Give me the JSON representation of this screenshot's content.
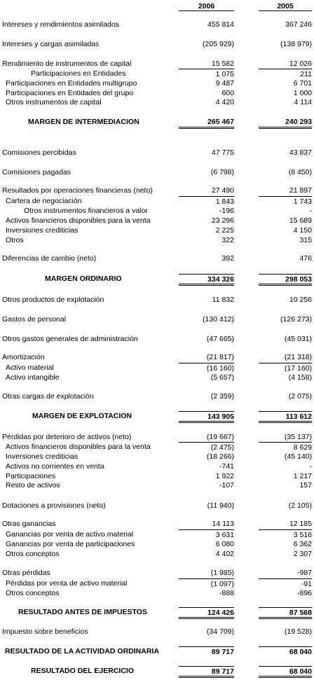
{
  "header": {
    "year_current": "2006",
    "year_previous": "2005"
  },
  "rows": [
    {
      "label": "Intereses y rendimientos asimilados",
      "v1": "455 814",
      "v2": "367 246"
    },
    {
      "label": "Intereses y cargas asimiladas",
      "v1": "(205 929)",
      "v2": "(138 979)"
    },
    {
      "label": "Rendimiento de instrumentos de capital",
      "v1": "15 582",
      "v2": "12 026"
    },
    {
      "label": "Participaciones en Entidades",
      "v1": "1 075",
      "v2": "211"
    },
    {
      "label": "Participaciones en Entidades multigrupo",
      "v1": "9 487",
      "v2": "6 701"
    },
    {
      "label": "Participaciones en Entidades del grupo",
      "v1": "600",
      "v2": "1 000"
    },
    {
      "label": "Otros instrumentos de capital",
      "v1": "4 420",
      "v2": "4 114"
    },
    {
      "label": "MARGEN DE INTERMEDIACION",
      "v1": "265 467",
      "v2": "240 293"
    },
    {
      "label": "Comisiones percibidas",
      "v1": "47 775",
      "v2": "43 837"
    },
    {
      "label": "Comisiones pagadas",
      "v1": "(6 798)",
      "v2": "(8 450)"
    },
    {
      "label": "Resultados por operaciones financieras (neto)",
      "v1": "27 490",
      "v2": "21 897"
    },
    {
      "label": "Cartera de negociación",
      "v1": "1 843",
      "v2": "1 743"
    },
    {
      "label": "Otros instrumentos financieros a valor",
      "v1": "-196",
      "v2": "-"
    },
    {
      "label": "Activos financieros disponibles para la venta",
      "v1": "23 296",
      "v2": "15 689"
    },
    {
      "label": "Inversiones crediticias",
      "v1": "2 225",
      "v2": "4 150"
    },
    {
      "label": "Otros",
      "v1": "322",
      "v2": "315"
    },
    {
      "label": "Diferencias de cambio (neto)",
      "v1": "392",
      "v2": "476"
    },
    {
      "label": "MARGEN ORDINARIO",
      "v1": "334 326",
      "v2": "298 053"
    },
    {
      "label": "Otros productos de explotación",
      "v1": "11 832",
      "v2": "10 256"
    },
    {
      "label": "Gastos de personal",
      "v1": "(130 412)",
      "v2": "(126 273)"
    },
    {
      "label": "Otros gastos generales de administración",
      "v1": "(47 665)",
      "v2": "(45 031)"
    },
    {
      "label": "Amortización",
      "v1": "(21 817)",
      "v2": "(21 318)"
    },
    {
      "label": "Activo material",
      "v1": "(16 160)",
      "v2": "(17 160)"
    },
    {
      "label": "Activo intangible",
      "v1": "(5 657)",
      "v2": "(4 158)"
    },
    {
      "label": "Otras cargas de explotación",
      "v1": "(2 359)",
      "v2": "(2 075)"
    },
    {
      "label": "MARGEN DE EXPLOTACION",
      "v1": "143 905",
      "v2": "113 612"
    },
    {
      "label": "Pérdidas por deterioro de activos (neto)",
      "v1": "(19 667)",
      "v2": "(35 137)"
    },
    {
      "label": "Activos financieros disponibles para la venta",
      "v1": "(2 475)",
      "v2": "8 629"
    },
    {
      "label": "Inversiones crediticias",
      "v1": "(18 266)",
      "v2": "(45 140)"
    },
    {
      "label": "Activos no corrientes en venta",
      "v1": "-741",
      "v2": "-"
    },
    {
      "label": "Participaciones",
      "v1": "1 922",
      "v2": "1 217"
    },
    {
      "label": "Resto de activos",
      "v1": "-107",
      "v2": "157"
    },
    {
      "label": "Dotaciones a provisiones (neto)",
      "v1": "(11 940)",
      "v2": "(2 105)"
    },
    {
      "label": "Otras ganancias",
      "v1": "14 113",
      "v2": "12 185"
    },
    {
      "label": "Ganancias por venta de activo material",
      "v1": "3 631",
      "v2": "3 516"
    },
    {
      "label": "Ganancias por venta de participaciones",
      "v1": "6 080",
      "v2": "6 362"
    },
    {
      "label": "Otros conceptos",
      "v1": "4 402",
      "v2": "2 307"
    },
    {
      "label": "Otras pérdidas",
      "v1": "(1 985)",
      "v2": "-987"
    },
    {
      "label": "Pérdidas por venta de activo material",
      "v1": "(1 097)",
      "v2": "-91"
    },
    {
      "label": "Otros conceptos",
      "v1": "-888",
      "v2": "-896"
    },
    {
      "label": "RESULTADO ANTES DE IMPUESTOS",
      "v1": "124 426",
      "v2": "87 568"
    },
    {
      "label": "Impuesto sobre beneficios",
      "v1": "(34 709)",
      "v2": "(19 528)"
    },
    {
      "label": "RESULTADO DE LA ACTIVIDAD ORDINARIA",
      "v1": "89 717",
      "v2": "68 040"
    },
    {
      "label": "RESULTADO DEL EJERCICIO",
      "v1": "89 717",
      "v2": "68 040"
    }
  ]
}
